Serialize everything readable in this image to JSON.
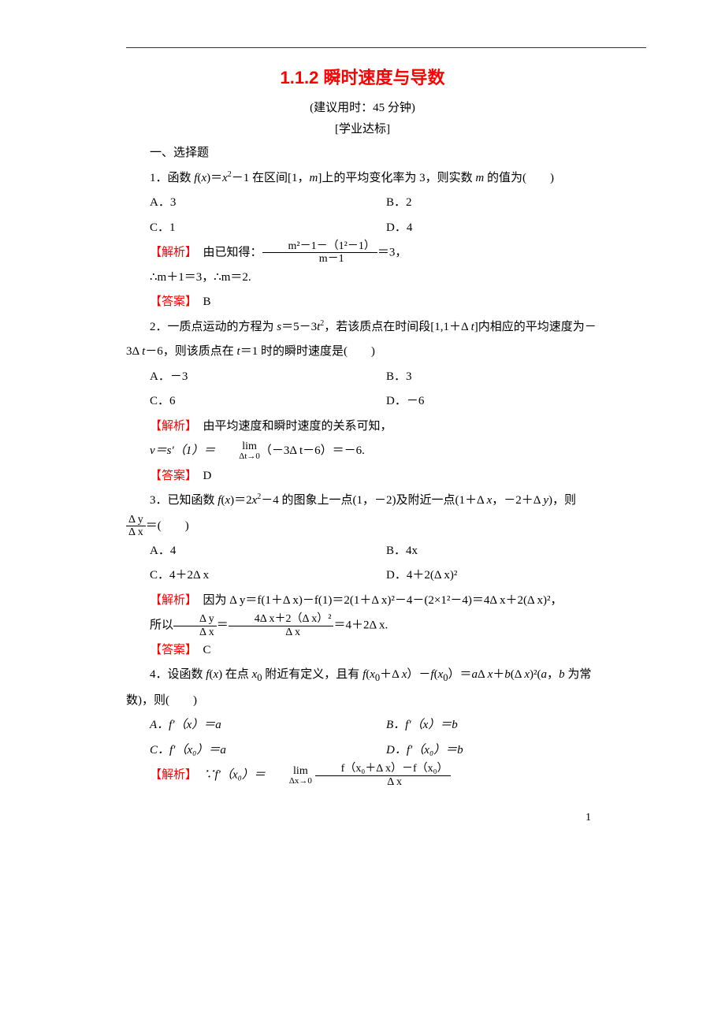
{
  "title": "1.1.2 瞬时速度与导数",
  "subtitle1": "(建议用时：45 分钟)",
  "subtitle2": "[学业达标]",
  "section_choice": "一、选择题",
  "q1": {
    "stem_a": "1．函数 ",
    "stem_b": "＝",
    "stem_c": "－1 在区间[1，",
    "stem_d": "]上的平均变化率为 3，则实数 ",
    "stem_e": " 的值为(　　)",
    "A": "A．3",
    "B": "B．2",
    "C": "C．1",
    "D": "D．4",
    "jiexi_label": "【解析】",
    "jiexi_a": "　由已知得：",
    "frac_num": "m²－1－（1²－1）",
    "frac_den": "m－1",
    "jiexi_b": "＝3，",
    "line2": "∴m＋1＝3，∴m＝2.",
    "daan_label": "【答案】",
    "daan": "　B"
  },
  "q2": {
    "stem_a": "2．一质点运动的方程为 ",
    "stem_b": "＝5－3",
    "stem_c": "，若该质点在时间段[1,1＋Δ ",
    "stem_d": "]内相应的平均速度为－3Δ ",
    "stem_e": "－6，则该质点在 ",
    "stem_f": "＝1 时的瞬时速度是(　　)",
    "A": "A．－3",
    "B": "B．3",
    "C": "C．6",
    "D": "D．－6",
    "jiexi_label": "【解析】",
    "jiexi_text": "　由平均速度和瞬时速度的关系可知，",
    "line2_a": "v＝s′（1）＝",
    "lim_top": "lim",
    "lim_bot": "Δt→0",
    "line2_b": "（－3Δ t－6）＝－6.",
    "daan_label": "【答案】",
    "daan": "　D"
  },
  "q3": {
    "stem_a": "3．已知函数 ",
    "stem_b": "＝2",
    "stem_c": "－4 的图象上一点(1，－2)及附近一点(1＋Δ ",
    "stem_d": "，－2＋Δ ",
    "stem_e": ")，则",
    "frac_num": "Δ y",
    "frac_den": "Δ x",
    "stem_f": "＝(　　)",
    "A": "A．4",
    "B": "B．4x",
    "C": "C．4＋2Δ x",
    "D": "D．4＋2(Δ x)²",
    "jiexi_label": "【解析】",
    "jiexi_a": "　因为 Δ y＝f(1＋Δ x)－f(1)＝2(1＋Δ x)²－4－(2×1²－4)＝4Δ x＋2(Δ x)²，",
    "line2_a": "所以",
    "frac2_num": "Δ y",
    "frac2_den": "Δ x",
    "line2_b": "＝",
    "frac3_num": "4Δ x＋2（Δ x）²",
    "frac3_den": "Δ x",
    "line2_c": "＝4＋2Δ x.",
    "daan_label": "【答案】",
    "daan": "　C"
  },
  "q4": {
    "stem_a": "4．设函数 ",
    "stem_b": " 在点 ",
    "stem_c": " 附近有定义，且有 ",
    "stem_d": "＋Δ ",
    "stem_e": "）－",
    "stem_f": "）＝",
    "stem_g": "Δ ",
    "stem_h": "＋",
    "stem_i": "(Δ ",
    "stem_j": ")²(",
    "stem_k": "，",
    "stem_l": " 为常数)，则(　　)",
    "A": "A．f′（x）＝a",
    "B": "B．f′（x）＝b",
    "C": "C．f′（x₀）＝a",
    "D": "D．f′（x₀）＝b",
    "jiexi_label": "【解析】",
    "jiexi_a": "　∵f′（x₀）＝",
    "lim_top": "lim",
    "lim_bot": "Δx→0",
    "frac_num": "f（x₀＋Δ x）－f（x₀）",
    "frac_den": "Δ x"
  },
  "page_num": "1"
}
